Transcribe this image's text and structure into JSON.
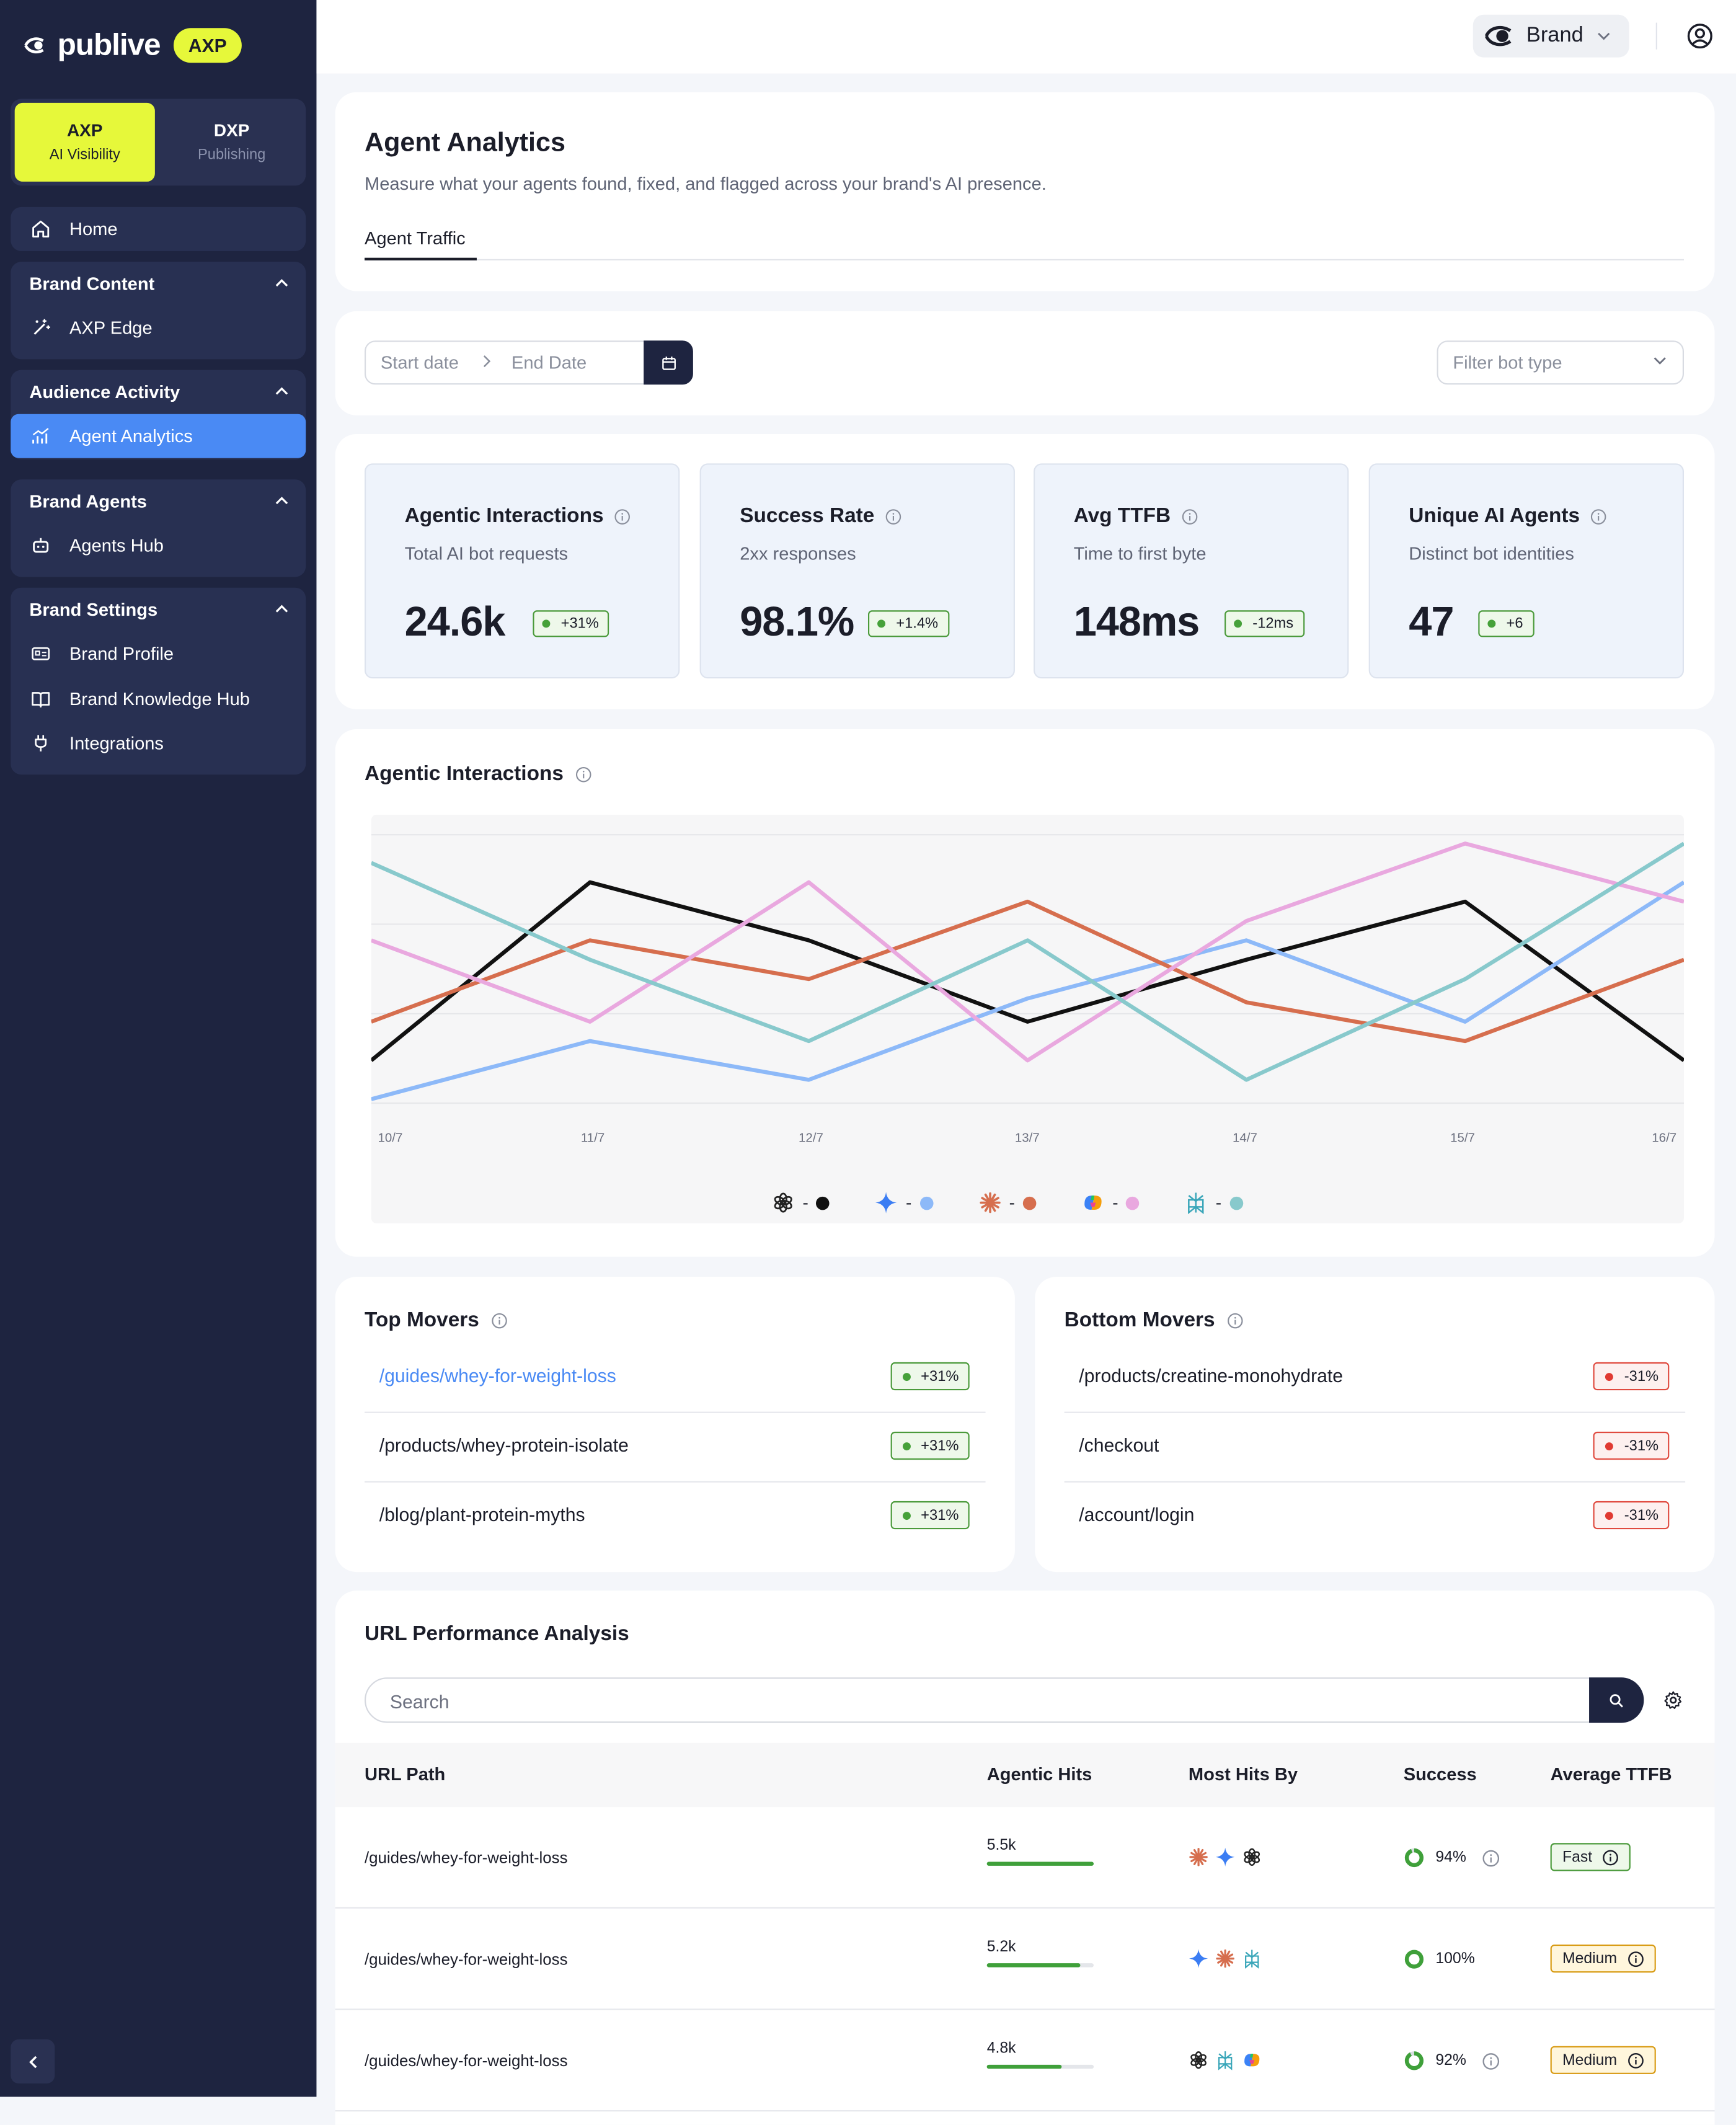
{
  "app": {
    "brand_name": "publive",
    "badge": "AXP"
  },
  "mode_switch": [
    {
      "title": "AXP",
      "subtitle": "AI Visibility",
      "active": true
    },
    {
      "title": "DXP",
      "subtitle": "Publishing",
      "active": false
    }
  ],
  "sidebar": {
    "home": "Home",
    "sections": [
      {
        "title": "Brand Content",
        "items": [
          {
            "label": "AXP Edge",
            "icon": "magic-wand-icon"
          }
        ]
      },
      {
        "title": "Audience Activity",
        "items": [
          {
            "label": "Agent Analytics",
            "icon": "analytics-icon",
            "active": true
          }
        ]
      },
      {
        "title": "Brand Agents",
        "items": [
          {
            "label": "Agents Hub",
            "icon": "bot-icon"
          }
        ]
      },
      {
        "title": "Brand Settings",
        "items": [
          {
            "label": "Brand Profile",
            "icon": "id-card-icon"
          },
          {
            "label": "Brand Knowledge Hub",
            "icon": "book-icon"
          },
          {
            "label": "Integrations",
            "icon": "plug-icon"
          }
        ]
      }
    ]
  },
  "topbar": {
    "brand_selector": "Brand"
  },
  "page": {
    "title": "Agent Analytics",
    "subtitle": "Measure what your agents found, fixed, and flagged across your brand's AI presence.",
    "tabs": [
      "Agent Traffic"
    ]
  },
  "filters": {
    "start_placeholder": "Start date",
    "end_placeholder": "End Date",
    "bot_filter": "Filter bot type"
  },
  "stats": [
    {
      "title": "Agentic Interactions",
      "desc": "Total AI bot requests",
      "value": "24.6k",
      "delta": "+31%"
    },
    {
      "title": "Success Rate",
      "desc": "2xx responses",
      "value": "98.1%",
      "delta": "+1.4%"
    },
    {
      "title": "Avg TTFB",
      "desc": "Time to first byte",
      "value": "148ms",
      "delta": "-12ms"
    },
    {
      "title": "Unique AI Agents",
      "desc": "Distinct bot identities",
      "value": "47",
      "delta": "+6"
    }
  ],
  "chart_title": "Agentic Interactions",
  "chart_data": {
    "type": "line",
    "x": [
      "10/7",
      "11/7",
      "12/7",
      "13/7",
      "14/7",
      "15/7",
      "16/7"
    ],
    "ylim": [
      0,
      7
    ],
    "grid": true,
    "series": [
      {
        "icon": "chatgpt-icon",
        "color": "#111111",
        "values": [
          1.0,
          5.6,
          4.1,
          2.0,
          3.6,
          5.1,
          1.0
        ]
      },
      {
        "icon": "gemini-icon",
        "color": "#8db9f8",
        "values": [
          0.0,
          1.5,
          0.5,
          2.6,
          4.1,
          2.0,
          5.6
        ]
      },
      {
        "icon": "claude-icon",
        "color": "#d66e4e",
        "values": [
          2.0,
          4.1,
          3.1,
          5.1,
          2.5,
          1.5,
          3.6
        ]
      },
      {
        "icon": "copilot-icon",
        "color": "#e9a8df",
        "values": [
          4.1,
          2.0,
          5.6,
          1.0,
          4.6,
          6.6,
          5.1
        ]
      },
      {
        "icon": "perplexity-icon",
        "color": "#88c9cc",
        "values": [
          6.1,
          3.6,
          1.5,
          4.1,
          0.5,
          3.1,
          6.6
        ]
      }
    ],
    "legend_position": "bottom-center"
  },
  "top_movers": {
    "title": "Top Movers",
    "rows": [
      {
        "path": "/guides/whey-for-weight-loss",
        "delta": "+31%",
        "highlight": true
      },
      {
        "path": "/products/whey-protein-isolate",
        "delta": "+31%"
      },
      {
        "path": "/blog/plant-protein-myths",
        "delta": "+31%"
      }
    ]
  },
  "bottom_movers": {
    "title": "Bottom Movers",
    "rows": [
      {
        "path": "/products/creatine-monohydrate",
        "delta": "-31%"
      },
      {
        "path": "/checkout",
        "delta": "-31%"
      },
      {
        "path": "/account/login",
        "delta": "-31%"
      }
    ]
  },
  "url_table": {
    "title": "URL Performance Analysis",
    "search_placeholder": "Search",
    "columns": [
      "URL Path",
      "Agentic Hits",
      "Most Hits By",
      "Success",
      "Average TTFB"
    ],
    "rows": [
      {
        "url": "/guides/whey-for-weight-loss",
        "hits": "5.5k",
        "hits_fraction": 1.0,
        "bots": [
          "claude-icon",
          "gemini-icon",
          "chatgpt-icon"
        ],
        "success": "94%",
        "success_fraction": 0.94,
        "ttfb": "Fast"
      },
      {
        "url": "/guides/whey-for-weight-loss",
        "hits": "5.2k",
        "hits_fraction": 0.87,
        "bots": [
          "gemini-icon",
          "claude-icon",
          "perplexity-icon"
        ],
        "success": "100%",
        "success_fraction": 1.0,
        "ttfb": "Medium"
      },
      {
        "url": "/guides/whey-for-weight-loss",
        "hits": "4.8k",
        "hits_fraction": 0.7,
        "bots": [
          "chatgpt-icon",
          "perplexity-icon",
          "copilot-icon"
        ],
        "success": "92%",
        "success_fraction": 0.92,
        "ttfb": "Medium"
      }
    ]
  }
}
